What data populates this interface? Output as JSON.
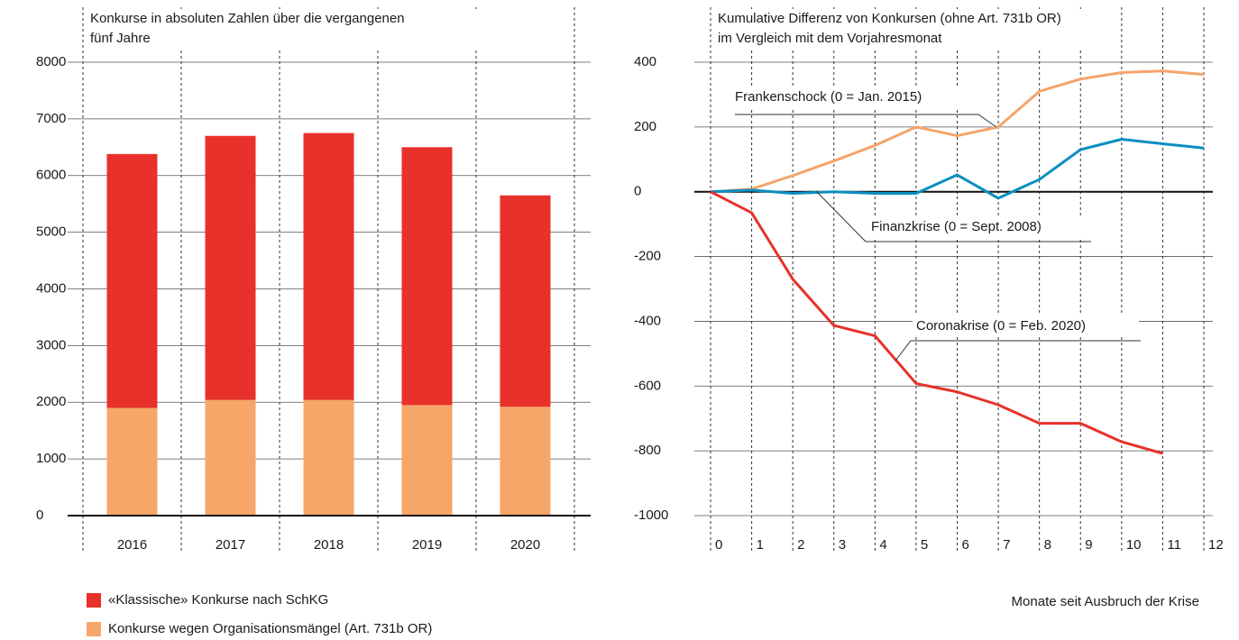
{
  "chart_data": [
    {
      "type": "stacked-bar",
      "title": [
        "Konkurse in absoluten Zahlen über die vergangenen",
        "fünf Jahre"
      ],
      "categories": [
        "2016",
        "2017",
        "2018",
        "2019",
        "2020"
      ],
      "series": [
        {
          "name": "«Klassische» Konkurse nach SchKG",
          "color": "#e8312a",
          "values": [
            4480,
            4660,
            4710,
            4550,
            3730
          ]
        },
        {
          "name": "Konkurse wegen Organisationsmängel (Art. 731b OR)",
          "color": "#f7a669",
          "values": [
            1900,
            2040,
            2040,
            1950,
            1920
          ]
        }
      ],
      "ylim": [
        0,
        8000
      ],
      "yticks": [
        0,
        1000,
        2000,
        3000,
        4000,
        5000,
        6000,
        7000,
        8000
      ],
      "grid": true
    },
    {
      "type": "line",
      "title": [
        "Kumulative Differenz von Konkursen (ohne Art. 731b OR)",
        "im Vergleich mit dem Vorjahresmonat"
      ],
      "x_label": "Monate seit Ausbruch der Krise",
      "x": [
        0,
        1,
        2,
        3,
        4,
        5,
        6,
        7,
        8,
        9,
        10,
        11,
        12
      ],
      "series": [
        {
          "name": "Frankenschock (0 = Jan. 2015)",
          "color": "#f5a46b",
          "values": [
            0,
            8,
            50,
            95,
            143,
            200,
            173,
            200,
            310,
            348,
            368,
            373,
            362
          ]
        },
        {
          "name": "Finanzkrise (0 = Sept. 2008)",
          "color": "#0a8fc0",
          "values": [
            0,
            5,
            -5,
            0,
            -5,
            -5,
            52,
            -20,
            38,
            130,
            162,
            148,
            135
          ]
        },
        {
          "name": "Coronakrise (0 = Feb. 2020)",
          "color": "#e8312a",
          "values": [
            0,
            -65,
            -270,
            -413,
            -445,
            -592,
            -618,
            -658,
            -715,
            -715,
            -772,
            -808,
            null
          ]
        }
      ],
      "xlim": [
        0,
        12
      ],
      "xticks": [
        0,
        1,
        2,
        3,
        4,
        5,
        6,
        7,
        8,
        9,
        10,
        11,
        12
      ],
      "ylim": [
        -1000,
        400
      ],
      "yticks": [
        -1000,
        -800,
        -600,
        -400,
        -200,
        0,
        200,
        400
      ],
      "grid": true
    }
  ]
}
